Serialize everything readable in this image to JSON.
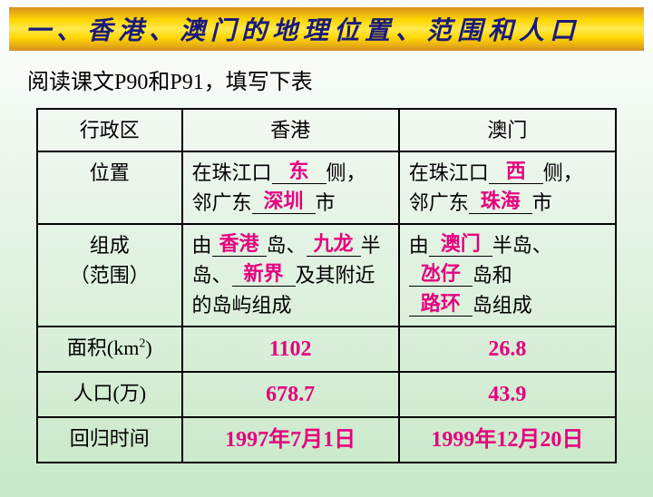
{
  "banner": "一、香港、澳门的地理位置、范围和人口",
  "instruction": "阅读课文P90和P91，填写下表",
  "headers": {
    "c1": "行政区",
    "c2": "香港",
    "c3": "澳门"
  },
  "rows": {
    "position": {
      "label": "位置",
      "hk": {
        "prefix1": "在珠江口",
        "fill1": "东",
        "suffix1": "侧，",
        "prefix2": "邻广东",
        "fill2": "深圳",
        "suffix2": "市"
      },
      "mo": {
        "prefix1": "在珠江口",
        "fill1": "西",
        "suffix1": "侧，",
        "prefix2": "邻广东",
        "fill2": "珠海",
        "suffix2": "市"
      }
    },
    "composition": {
      "label1": "组成",
      "label2": "（范围）",
      "hk": {
        "t1": "由",
        "f1": "香港",
        "t2": "岛、",
        "f2": "九龙",
        "t3": "半岛、",
        "f3": "新界",
        "t4": "及其附近的岛屿组成"
      },
      "mo": {
        "t1": "由",
        "f1": "澳门",
        "t2": "半岛、",
        "f2": "氹仔",
        "t3": "岛和",
        "f3": "路环",
        "t4": "岛组成"
      }
    },
    "area": {
      "label_a": "面积(km",
      "label_b": ")",
      "hk": "1102",
      "mo": "26.8"
    },
    "pop": {
      "label": "人口(万)",
      "hk": "678.7",
      "mo": "43.9"
    },
    "ret": {
      "label": "回归时间",
      "hk": "1997年7月1日",
      "mo": "1999年12月20日"
    }
  }
}
